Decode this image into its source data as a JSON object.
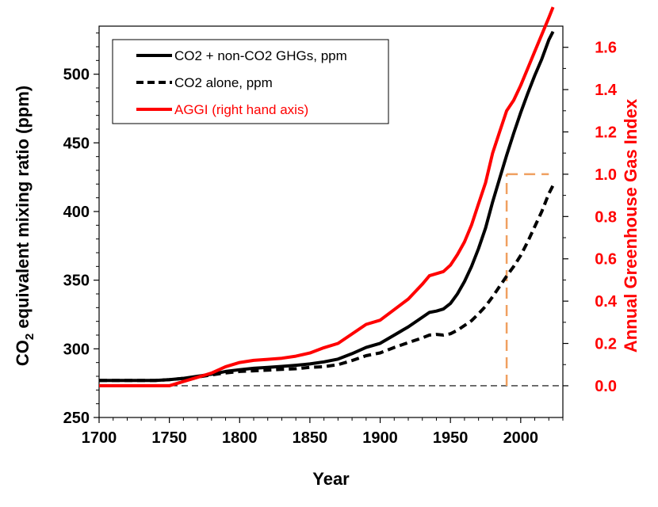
{
  "chart_data": {
    "type": "line",
    "xlabel": "Year",
    "ylabel_main": "CO",
    "ylabel_sub": "2",
    "ylabel_rest": " equivalent mixing ratio (ppm)",
    "y2label": "Annual Greenhouse Gas Index",
    "xlim": [
      1700,
      2030
    ],
    "ylim": [
      250,
      535
    ],
    "y2lim": [
      -0.15,
      1.7
    ],
    "x_ticks": [
      1700,
      1750,
      1800,
      1850,
      1900,
      1950,
      2000
    ],
    "y_ticks": [
      250,
      300,
      350,
      400,
      450,
      500
    ],
    "y2_ticks": [
      0.0,
      0.2,
      0.4,
      0.6,
      0.8,
      1.0,
      1.2,
      1.4,
      1.6
    ],
    "y2_tick_labels": [
      "0.0",
      "0.2",
      "0.4",
      "0.6",
      "0.8",
      "1.0",
      "1.2",
      "1.4",
      "1.6"
    ],
    "legend": [
      {
        "label": "CO2 + non-CO2 GHGs, ppm",
        "color": "#000000",
        "style": "solid"
      },
      {
        "label": "CO2 alone, ppm",
        "color": "#000000",
        "style": "dashed"
      },
      {
        "label": "AGGI (right hand axis)",
        "color": "#ff0000",
        "style": "solid"
      }
    ],
    "series": [
      {
        "name": "CO2 + non-CO2 GHGs, ppm",
        "axis": "left",
        "color": "#000000",
        "style": "solid",
        "x": [
          1700,
          1720,
          1740,
          1750,
          1760,
          1770,
          1780,
          1790,
          1800,
          1810,
          1820,
          1830,
          1840,
          1850,
          1860,
          1870,
          1880,
          1890,
          1900,
          1910,
          1920,
          1930,
          1935,
          1940,
          1945,
          1950,
          1955,
          1960,
          1965,
          1970,
          1975,
          1980,
          1985,
          1990,
          1995,
          2000,
          2005,
          2010,
          2015,
          2020,
          2023
        ],
        "y": [
          277,
          277,
          277,
          277.5,
          278.5,
          280,
          281.5,
          283.5,
          284.8,
          285.8,
          286.5,
          287.2,
          288,
          289,
          290.5,
          292.5,
          296.5,
          301,
          304,
          310,
          316,
          323,
          326.5,
          327.5,
          329,
          333,
          340,
          349,
          360,
          373,
          388,
          407,
          424,
          441,
          457,
          472,
          486,
          499,
          511,
          525,
          531
        ]
      },
      {
        "name": "CO2 alone, ppm",
        "axis": "left",
        "color": "#000000",
        "style": "dashed",
        "x": [
          1700,
          1720,
          1740,
          1750,
          1760,
          1770,
          1780,
          1790,
          1800,
          1810,
          1820,
          1830,
          1840,
          1850,
          1860,
          1870,
          1880,
          1890,
          1900,
          1910,
          1920,
          1930,
          1935,
          1940,
          1945,
          1950,
          1955,
          1960,
          1965,
          1970,
          1975,
          1980,
          1985,
          1990,
          1995,
          2000,
          2005,
          2010,
          2015,
          2020,
          2023
        ],
        "y": [
          277,
          277,
          277,
          277.5,
          278.5,
          279.5,
          281,
          282.5,
          283.5,
          284,
          284.5,
          285,
          285.5,
          286.5,
          287,
          288.5,
          291.5,
          295,
          297,
          301,
          304.5,
          308,
          310,
          310.5,
          310,
          311,
          313.5,
          317,
          320.5,
          325.5,
          331,
          338,
          345.5,
          353,
          360,
          368,
          378,
          389,
          400,
          413,
          419
        ]
      },
      {
        "name": "AGGI (right hand axis)",
        "axis": "right",
        "color": "#ff0000",
        "style": "solid",
        "x": [
          1700,
          1720,
          1740,
          1750,
          1760,
          1770,
          1780,
          1790,
          1800,
          1810,
          1820,
          1830,
          1840,
          1850,
          1860,
          1870,
          1880,
          1890,
          1900,
          1910,
          1920,
          1930,
          1935,
          1940,
          1945,
          1950,
          1955,
          1960,
          1965,
          1970,
          1975,
          1980,
          1985,
          1990,
          1995,
          2000,
          2005,
          2010,
          2015,
          2020,
          2023
        ],
        "y": [
          0.0,
          0.0,
          0.0,
          0.0,
          0.02,
          0.04,
          0.06,
          0.09,
          0.11,
          0.12,
          0.125,
          0.13,
          0.14,
          0.155,
          0.18,
          0.2,
          0.245,
          0.29,
          0.31,
          0.36,
          0.41,
          0.48,
          0.52,
          0.53,
          0.54,
          0.57,
          0.62,
          0.68,
          0.76,
          0.86,
          0.96,
          1.1,
          1.2,
          1.3,
          1.35,
          1.42,
          1.5,
          1.58,
          1.66,
          1.74,
          1.79
        ]
      }
    ],
    "annotations": [
      {
        "type": "hline",
        "axis": "right",
        "y": 0.0,
        "x_from": 1700,
        "x_to": 2030,
        "color": "#000000",
        "style": "dashed"
      },
      {
        "type": "vline",
        "x": 1990,
        "y_from": 0.0,
        "y_to": 1.0,
        "color": "#f0a060",
        "style": "dashed"
      },
      {
        "type": "hline",
        "axis": "right",
        "y": 1.0,
        "x_from": 1990,
        "x_to": 2020,
        "color": "#f0a060",
        "style": "dashed"
      }
    ]
  }
}
